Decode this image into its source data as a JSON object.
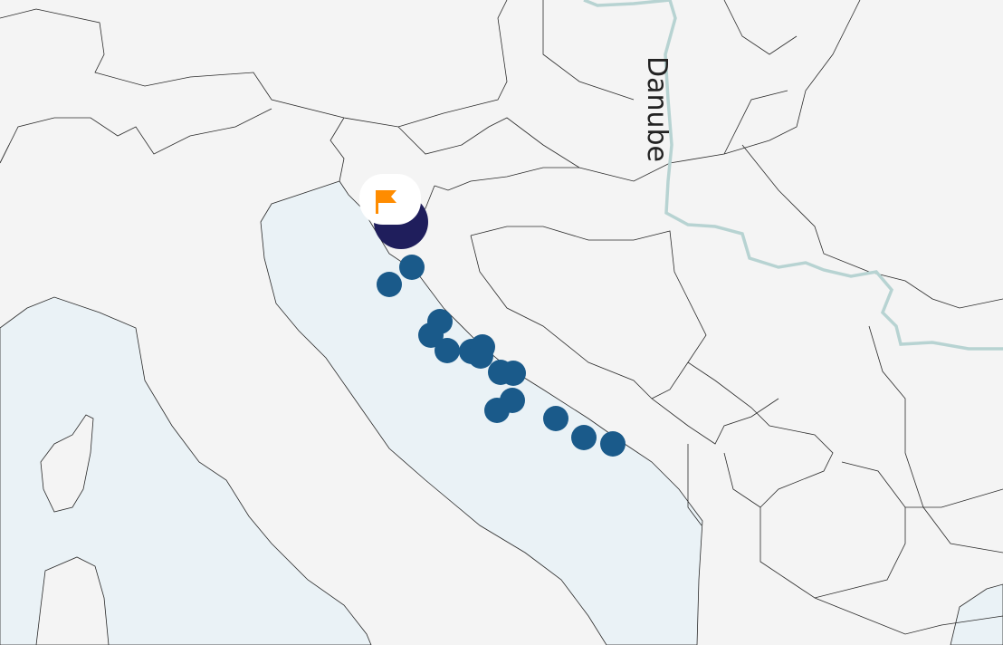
{
  "map": {
    "land_color": "#f4f4f4",
    "sea_color": "#eaf2f6",
    "river_color": "#b7d3d2",
    "river_label": "Danube",
    "marker_color": "#1a5a8a",
    "cluster_color": "#1f1e5c",
    "flag_color": "#ff8c00",
    "flag_icon": "flag-icon",
    "marker_count": 15
  }
}
